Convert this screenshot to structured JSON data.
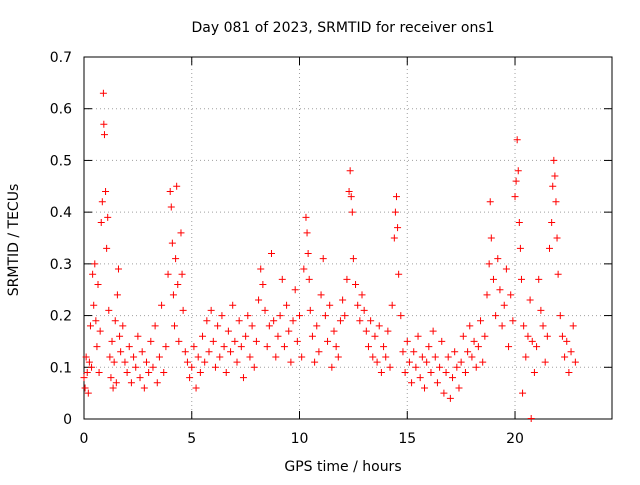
{
  "chart_data": {
    "type": "scatter",
    "title": "Day 081 of 2023, SRMTID for receiver ons1",
    "xlabel": "GPS time / hours",
    "ylabel": "SRMTID / TECUs",
    "xlim": [
      0,
      24.5
    ],
    "ylim": [
      0,
      0.7
    ],
    "xticks": [
      0,
      5,
      10,
      15,
      20
    ],
    "xtick_labels": [
      "0",
      "5",
      "10",
      "15",
      "20"
    ],
    "yticks": [
      0,
      0.1,
      0.2,
      0.3,
      0.4,
      0.5,
      0.6,
      0.7
    ],
    "ytick_labels": [
      "0",
      "0.1",
      "0.2",
      "0.3",
      "0.4",
      "0.5",
      "0.6",
      "0.7"
    ],
    "grid": true,
    "marker": "+",
    "color": "#ff0000",
    "series": [
      {
        "name": "SRMTID",
        "points": [
          [
            0.0,
            0.08
          ],
          [
            0.05,
            0.06
          ],
          [
            0.1,
            0.12
          ],
          [
            0.15,
            0.09
          ],
          [
            0.2,
            0.05
          ],
          [
            0.25,
            0.11
          ],
          [
            0.3,
            0.18
          ],
          [
            0.35,
            0.1
          ],
          [
            0.4,
            0.28
          ],
          [
            0.45,
            0.22
          ],
          [
            0.5,
            0.3
          ],
          [
            0.55,
            0.19
          ],
          [
            0.6,
            0.14
          ],
          [
            0.65,
            0.26
          ],
          [
            0.7,
            0.09
          ],
          [
            0.75,
            0.17
          ],
          [
            0.8,
            0.38
          ],
          [
            0.85,
            0.42
          ],
          [
            0.9,
            0.63
          ],
          [
            0.92,
            0.57
          ],
          [
            0.95,
            0.55
          ],
          [
            1.0,
            0.44
          ],
          [
            1.05,
            0.33
          ],
          [
            1.1,
            0.39
          ],
          [
            1.15,
            0.21
          ],
          [
            1.2,
            0.12
          ],
          [
            1.25,
            0.08
          ],
          [
            1.3,
            0.15
          ],
          [
            1.35,
            0.06
          ],
          [
            1.4,
            0.11
          ],
          [
            1.45,
            0.19
          ],
          [
            1.5,
            0.07
          ],
          [
            1.55,
            0.24
          ],
          [
            1.6,
            0.29
          ],
          [
            1.65,
            0.16
          ],
          [
            1.7,
            0.13
          ],
          [
            1.8,
            0.18
          ],
          [
            1.9,
            0.11
          ],
          [
            2.0,
            0.09
          ],
          [
            2.1,
            0.14
          ],
          [
            2.2,
            0.07
          ],
          [
            2.3,
            0.12
          ],
          [
            2.4,
            0.1
          ],
          [
            2.5,
            0.16
          ],
          [
            2.6,
            0.08
          ],
          [
            2.7,
            0.13
          ],
          [
            2.8,
            0.06
          ],
          [
            2.9,
            0.11
          ],
          [
            3.0,
            0.09
          ],
          [
            3.1,
            0.15
          ],
          [
            3.2,
            0.1
          ],
          [
            3.3,
            0.18
          ],
          [
            3.4,
            0.07
          ],
          [
            3.5,
            0.12
          ],
          [
            3.6,
            0.22
          ],
          [
            3.7,
            0.09
          ],
          [
            3.8,
            0.14
          ],
          [
            3.9,
            0.28
          ],
          [
            4.0,
            0.44
          ],
          [
            4.05,
            0.41
          ],
          [
            4.1,
            0.34
          ],
          [
            4.15,
            0.24
          ],
          [
            4.2,
            0.18
          ],
          [
            4.25,
            0.31
          ],
          [
            4.3,
            0.45
          ],
          [
            4.35,
            0.26
          ],
          [
            4.4,
            0.15
          ],
          [
            4.5,
            0.36
          ],
          [
            4.55,
            0.28
          ],
          [
            4.6,
            0.21
          ],
          [
            4.7,
            0.13
          ],
          [
            4.8,
            0.11
          ],
          [
            4.9,
            0.08
          ],
          [
            5.0,
            0.1
          ],
          [
            5.1,
            0.14
          ],
          [
            5.2,
            0.06
          ],
          [
            5.3,
            0.12
          ],
          [
            5.4,
            0.09
          ],
          [
            5.5,
            0.16
          ],
          [
            5.6,
            0.11
          ],
          [
            5.7,
            0.19
          ],
          [
            5.8,
            0.13
          ],
          [
            5.9,
            0.21
          ],
          [
            6.0,
            0.15
          ],
          [
            6.1,
            0.1
          ],
          [
            6.2,
            0.18
          ],
          [
            6.3,
            0.12
          ],
          [
            6.4,
            0.2
          ],
          [
            6.5,
            0.14
          ],
          [
            6.6,
            0.09
          ],
          [
            6.7,
            0.17
          ],
          [
            6.8,
            0.13
          ],
          [
            6.9,
            0.22
          ],
          [
            7.0,
            0.15
          ],
          [
            7.1,
            0.11
          ],
          [
            7.2,
            0.19
          ],
          [
            7.3,
            0.14
          ],
          [
            7.4,
            0.08
          ],
          [
            7.5,
            0.16
          ],
          [
            7.6,
            0.2
          ],
          [
            7.7,
            0.12
          ],
          [
            7.8,
            0.18
          ],
          [
            7.9,
            0.1
          ],
          [
            8.0,
            0.15
          ],
          [
            8.1,
            0.23
          ],
          [
            8.2,
            0.29
          ],
          [
            8.3,
            0.26
          ],
          [
            8.4,
            0.21
          ],
          [
            8.5,
            0.14
          ],
          [
            8.6,
            0.18
          ],
          [
            8.7,
            0.32
          ],
          [
            8.8,
            0.19
          ],
          [
            8.9,
            0.12
          ],
          [
            9.0,
            0.16
          ],
          [
            9.1,
            0.2
          ],
          [
            9.2,
            0.27
          ],
          [
            9.3,
            0.14
          ],
          [
            9.4,
            0.22
          ],
          [
            9.5,
            0.17
          ],
          [
            9.6,
            0.11
          ],
          [
            9.7,
            0.19
          ],
          [
            9.8,
            0.25
          ],
          [
            9.9,
            0.15
          ],
          [
            10.0,
            0.2
          ],
          [
            10.1,
            0.12
          ],
          [
            10.2,
            0.29
          ],
          [
            10.3,
            0.39
          ],
          [
            10.35,
            0.36
          ],
          [
            10.4,
            0.32
          ],
          [
            10.45,
            0.27
          ],
          [
            10.5,
            0.21
          ],
          [
            10.6,
            0.16
          ],
          [
            10.7,
            0.11
          ],
          [
            10.8,
            0.18
          ],
          [
            10.9,
            0.13
          ],
          [
            11.0,
            0.24
          ],
          [
            11.1,
            0.31
          ],
          [
            11.2,
            0.2
          ],
          [
            11.3,
            0.15
          ],
          [
            11.4,
            0.22
          ],
          [
            11.5,
            0.1
          ],
          [
            11.6,
            0.17
          ],
          [
            11.7,
            0.14
          ],
          [
            11.8,
            0.12
          ],
          [
            11.9,
            0.19
          ],
          [
            12.0,
            0.23
          ],
          [
            12.1,
            0.2
          ],
          [
            12.2,
            0.27
          ],
          [
            12.3,
            0.44
          ],
          [
            12.35,
            0.48
          ],
          [
            12.4,
            0.43
          ],
          [
            12.45,
            0.4
          ],
          [
            12.5,
            0.31
          ],
          [
            12.6,
            0.26
          ],
          [
            12.7,
            0.22
          ],
          [
            12.8,
            0.19
          ],
          [
            12.9,
            0.24
          ],
          [
            13.0,
            0.21
          ],
          [
            13.1,
            0.17
          ],
          [
            13.2,
            0.14
          ],
          [
            13.3,
            0.19
          ],
          [
            13.4,
            0.12
          ],
          [
            13.5,
            0.16
          ],
          [
            13.6,
            0.11
          ],
          [
            13.7,
            0.18
          ],
          [
            13.8,
            0.09
          ],
          [
            13.9,
            0.14
          ],
          [
            14.0,
            0.12
          ],
          [
            14.1,
            0.17
          ],
          [
            14.2,
            0.1
          ],
          [
            14.3,
            0.22
          ],
          [
            14.4,
            0.35
          ],
          [
            14.45,
            0.4
          ],
          [
            14.5,
            0.43
          ],
          [
            14.55,
            0.37
          ],
          [
            14.6,
            0.28
          ],
          [
            14.7,
            0.2
          ],
          [
            14.8,
            0.13
          ],
          [
            14.9,
            0.09
          ],
          [
            15.0,
            0.15
          ],
          [
            15.1,
            0.11
          ],
          [
            15.2,
            0.07
          ],
          [
            15.3,
            0.13
          ],
          [
            15.4,
            0.1
          ],
          [
            15.5,
            0.16
          ],
          [
            15.6,
            0.08
          ],
          [
            15.7,
            0.12
          ],
          [
            15.8,
            0.06
          ],
          [
            15.9,
            0.11
          ],
          [
            16.0,
            0.14
          ],
          [
            16.1,
            0.09
          ],
          [
            16.2,
            0.17
          ],
          [
            16.3,
            0.12
          ],
          [
            16.4,
            0.07
          ],
          [
            16.5,
            0.1
          ],
          [
            16.6,
            0.15
          ],
          [
            16.7,
            0.05
          ],
          [
            16.8,
            0.09
          ],
          [
            16.9,
            0.12
          ],
          [
            17.0,
            0.04
          ],
          [
            17.1,
            0.08
          ],
          [
            17.2,
            0.13
          ],
          [
            17.3,
            0.1
          ],
          [
            17.4,
            0.06
          ],
          [
            17.5,
            0.11
          ],
          [
            17.6,
            0.16
          ],
          [
            17.7,
            0.09
          ],
          [
            17.8,
            0.13
          ],
          [
            17.9,
            0.18
          ],
          [
            18.0,
            0.12
          ],
          [
            18.1,
            0.15
          ],
          [
            18.2,
            0.1
          ],
          [
            18.3,
            0.14
          ],
          [
            18.4,
            0.19
          ],
          [
            18.5,
            0.11
          ],
          [
            18.6,
            0.16
          ],
          [
            18.7,
            0.24
          ],
          [
            18.8,
            0.3
          ],
          [
            18.85,
            0.42
          ],
          [
            18.9,
            0.35
          ],
          [
            19.0,
            0.27
          ],
          [
            19.1,
            0.2
          ],
          [
            19.2,
            0.31
          ],
          [
            19.3,
            0.25
          ],
          [
            19.4,
            0.18
          ],
          [
            19.5,
            0.22
          ],
          [
            19.6,
            0.29
          ],
          [
            19.7,
            0.14
          ],
          [
            19.8,
            0.24
          ],
          [
            19.9,
            0.19
          ],
          [
            20.0,
            0.43
          ],
          [
            20.05,
            0.46
          ],
          [
            20.1,
            0.54
          ],
          [
            20.15,
            0.48
          ],
          [
            20.2,
            0.38
          ],
          [
            20.25,
            0.33
          ],
          [
            20.3,
            0.27
          ],
          [
            20.35,
            0.05
          ],
          [
            20.4,
            0.18
          ],
          [
            20.5,
            0.12
          ],
          [
            20.6,
            0.16
          ],
          [
            20.7,
            0.23
          ],
          [
            20.75,
            0.001
          ],
          [
            20.8,
            0.15
          ],
          [
            20.9,
            0.09
          ],
          [
            21.0,
            0.14
          ],
          [
            21.1,
            0.27
          ],
          [
            21.2,
            0.21
          ],
          [
            21.3,
            0.18
          ],
          [
            21.4,
            0.11
          ],
          [
            21.5,
            0.16
          ],
          [
            21.6,
            0.33
          ],
          [
            21.7,
            0.38
          ],
          [
            21.75,
            0.45
          ],
          [
            21.8,
            0.5
          ],
          [
            21.85,
            0.47
          ],
          [
            21.9,
            0.42
          ],
          [
            21.95,
            0.35
          ],
          [
            22.0,
            0.28
          ],
          [
            22.1,
            0.2
          ],
          [
            22.2,
            0.16
          ],
          [
            22.3,
            0.12
          ],
          [
            22.4,
            0.15
          ],
          [
            22.5,
            0.09
          ],
          [
            22.6,
            0.13
          ],
          [
            22.7,
            0.18
          ],
          [
            22.8,
            0.11
          ]
        ]
      }
    ]
  }
}
